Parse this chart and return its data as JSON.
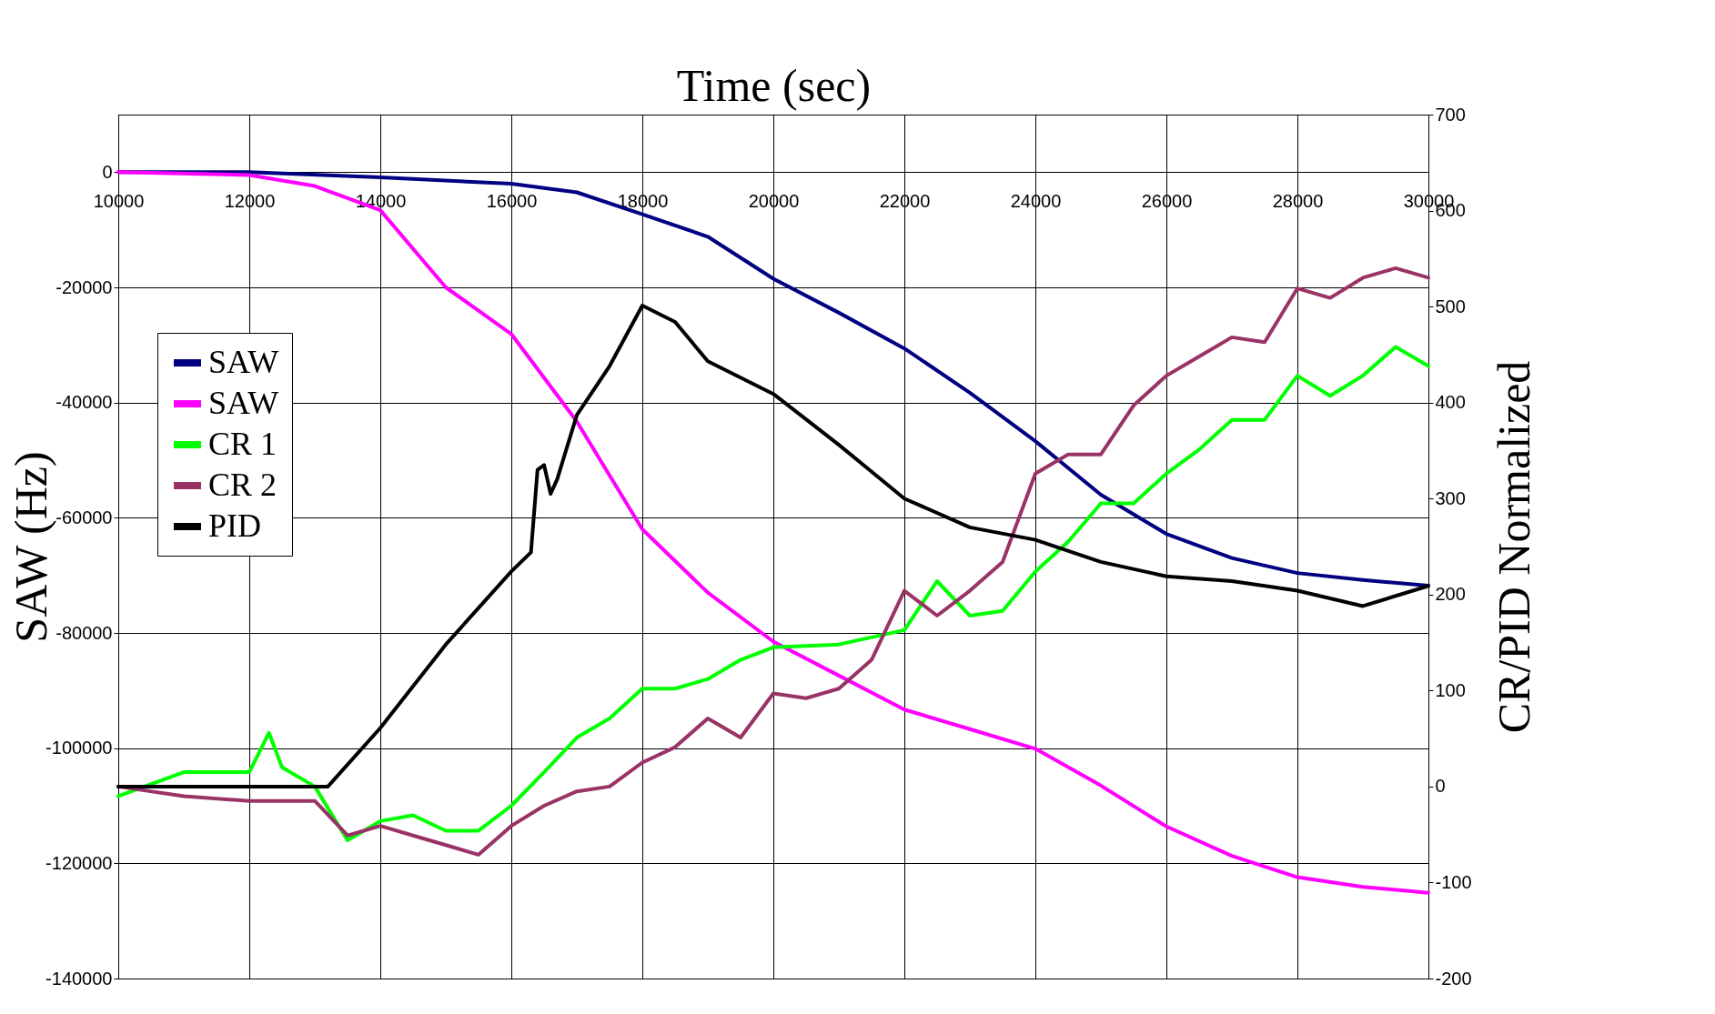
{
  "chart_data": {
    "type": "line",
    "xlabel": "Time (sec)",
    "ylabel": "SAW (Hz)",
    "y2label": "CR/PID Normalized",
    "xlim": [
      10000,
      30000
    ],
    "xticks": [
      10000,
      12000,
      14000,
      16000,
      18000,
      20000,
      22000,
      24000,
      26000,
      28000,
      30000
    ],
    "ylim": [
      -140000,
      10000
    ],
    "yticks": [
      -140000,
      -120000,
      -100000,
      -80000,
      -60000,
      -40000,
      -20000,
      0
    ],
    "y2lim": [
      -200,
      700
    ],
    "y2ticks": [
      -200,
      -100,
      0,
      100,
      200,
      300,
      400,
      500,
      600,
      700
    ],
    "grid": true,
    "legend": "left",
    "line_style": "solid",
    "series": [
      {
        "name": "SAW",
        "color": "#000080",
        "x": [
          10000,
          12000,
          14000,
          16000,
          17000,
          18000,
          19000,
          20000,
          21000,
          22000,
          23000,
          24000,
          25000,
          26000,
          27000,
          28000,
          29000,
          30000
        ],
        "values": [
          0,
          0,
          -900,
          -2000,
          -3500,
          -7300,
          -11200,
          -18500,
          -24400,
          -30600,
          -38300,
          -46700,
          -56000,
          -62800,
          -67000,
          -69600,
          -70800,
          -71800
        ]
      },
      {
        "name": "SAW",
        "color": "#ff00ff",
        "x": [
          10000,
          12000,
          13000,
          14000,
          15000,
          16000,
          17000,
          18000,
          19000,
          20000,
          21000,
          22000,
          23000,
          24000,
          25000,
          26000,
          27000,
          28000,
          29000,
          30000
        ],
        "values": [
          0,
          -500,
          -2400,
          -6600,
          -20000,
          -28100,
          -43300,
          -62000,
          -73000,
          -81500,
          -87400,
          -93300,
          -96700,
          -100100,
          -106500,
          -113600,
          -118700,
          -122400,
          -124100,
          -125100
        ]
      },
      {
        "name": "CR 1",
        "color": "#00ff00",
        "axis": "y2",
        "x": [
          10000,
          11000,
          12000,
          12300,
          12500,
          13000,
          13500,
          14000,
          14500,
          15000,
          15500,
          16000,
          16500,
          17000,
          17500,
          18000,
          18500,
          19000,
          19500,
          20000,
          21000,
          22000,
          22500,
          23000,
          23500,
          24000,
          24500,
          25000,
          25500,
          26000,
          26500,
          27000,
          27500,
          28000,
          28500,
          29000,
          29500,
          30000
        ],
        "values": [
          -10,
          15,
          15,
          56,
          20,
          0,
          -56,
          -36,
          -30,
          -46,
          -46,
          -20,
          15,
          51,
          71,
          102,
          102,
          112,
          132,
          145,
          148,
          163,
          214,
          178,
          183,
          224,
          255,
          295,
          295,
          326,
          351,
          382,
          382,
          428,
          407,
          428,
          458,
          438
        ]
      },
      {
        "name": "CR 2",
        "color": "#993366",
        "axis": "y2",
        "x": [
          10000,
          11000,
          12000,
          13000,
          13500,
          14000,
          14500,
          15000,
          15500,
          16000,
          16500,
          17000,
          17500,
          18000,
          18500,
          19000,
          19500,
          20000,
          20500,
          21000,
          21500,
          22000,
          22500,
          23000,
          23500,
          24000,
          24500,
          25000,
          25500,
          26000,
          26500,
          27000,
          27500,
          28000,
          28500,
          29000,
          29500,
          30000
        ],
        "values": [
          0,
          -10,
          -15,
          -15,
          -51,
          -41,
          -51,
          -61,
          -71,
          -41,
          -20,
          -5,
          0,
          25,
          41,
          71,
          51,
          97,
          92,
          102,
          132,
          204,
          178,
          204,
          234,
          326,
          346,
          346,
          397,
          428,
          448,
          468,
          463,
          519,
          509,
          530,
          540,
          530
        ]
      },
      {
        "name": "PID",
        "color": "#000000",
        "axis": "y2",
        "x": [
          10000,
          13200,
          14000,
          15000,
          16000,
          16300,
          16400,
          16500,
          16600,
          16700,
          17000,
          17500,
          18000,
          18500,
          19000,
          20000,
          21000,
          22000,
          23000,
          24000,
          25000,
          26000,
          27000,
          28000,
          29000,
          30000
        ],
        "values": [
          0,
          0,
          61,
          148,
          224,
          244,
          330,
          335,
          305,
          320,
          387,
          438,
          501,
          484,
          443,
          409,
          356,
          300,
          270,
          257,
          234,
          219,
          214,
          204,
          188,
          209
        ]
      }
    ]
  }
}
